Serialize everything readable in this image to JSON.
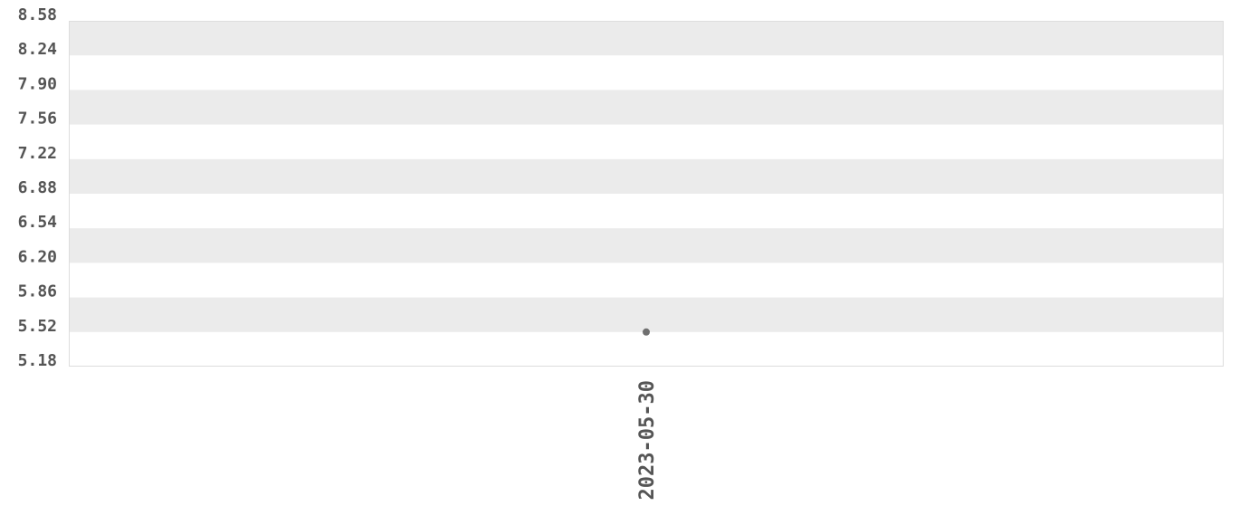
{
  "chart_data": {
    "type": "scatter",
    "title": "",
    "xlabel": "",
    "ylabel": "",
    "x": [
      "2023-05-30"
    ],
    "y": [
      5.52
    ],
    "ylim": [
      5.18,
      8.58
    ],
    "yticks": [
      "8.58",
      "8.24",
      "7.90",
      "7.56",
      "7.22",
      "6.88",
      "6.54",
      "6.20",
      "5.86",
      "5.52",
      "5.18"
    ],
    "xticks": [
      "2023-05-30"
    ],
    "grid": "alternating horizontal bands",
    "legend": "none",
    "colors": {
      "point": "#707070",
      "band": "#ebebeb",
      "text": "#555555",
      "border": "#dddddd"
    }
  }
}
